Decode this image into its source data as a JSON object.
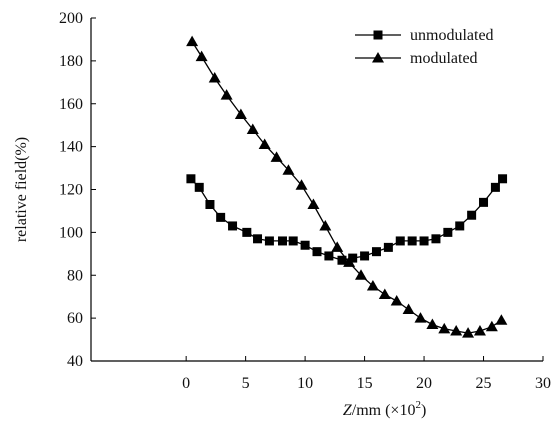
{
  "chart_data": {
    "type": "line",
    "xlabel_italic": "Z",
    "xlabel_rest": "/mm  (×10",
    "xlabel_sup": "2",
    "xlabel_close": ")",
    "ylabel": "relative field(%)",
    "xlim": [
      -8,
      30
    ],
    "ylim": [
      40,
      200
    ],
    "xticks": [
      0,
      5,
      10,
      15,
      20,
      25,
      30
    ],
    "yticks": [
      40,
      60,
      80,
      100,
      120,
      140,
      160,
      180,
      200
    ],
    "legend_position": "top-right",
    "grid": false,
    "series": [
      {
        "name": "unmodulated",
        "marker": "square",
        "color": "#000000",
        "x": [
          0.4,
          1.1,
          2.0,
          2.9,
          3.9,
          5.1,
          6.0,
          7.0,
          8.1,
          9.0,
          10.0,
          11.0,
          12.0,
          13.1,
          14.0,
          15.0,
          16.0,
          17.0,
          18.0,
          19.0,
          20.0,
          21.0,
          22.0,
          23.0,
          24.0,
          25.0,
          26.0,
          26.6
        ],
        "y": [
          125,
          121,
          113,
          107,
          103,
          100,
          97,
          96,
          96,
          96,
          94,
          91,
          89,
          87,
          88,
          89,
          91,
          93,
          96,
          96,
          96,
          97,
          100,
          103,
          108,
          114,
          121,
          125
        ]
      },
      {
        "name": "modulated",
        "marker": "triangle",
        "color": "#000000",
        "x": [
          0.5,
          1.3,
          2.4,
          3.4,
          4.6,
          5.6,
          6.6,
          7.6,
          8.6,
          9.7,
          10.7,
          11.7,
          12.7,
          13.7,
          14.7,
          15.7,
          16.7,
          17.7,
          18.7,
          19.7,
          20.7,
          21.7,
          22.7,
          23.7,
          24.7,
          25.7,
          26.5
        ],
        "y": [
          189,
          182,
          172,
          164,
          155,
          148,
          141,
          135,
          129,
          122,
          113,
          103,
          93,
          86,
          80,
          75,
          71,
          68,
          64,
          60,
          57,
          55,
          54,
          53,
          54,
          56,
          59
        ]
      }
    ]
  }
}
